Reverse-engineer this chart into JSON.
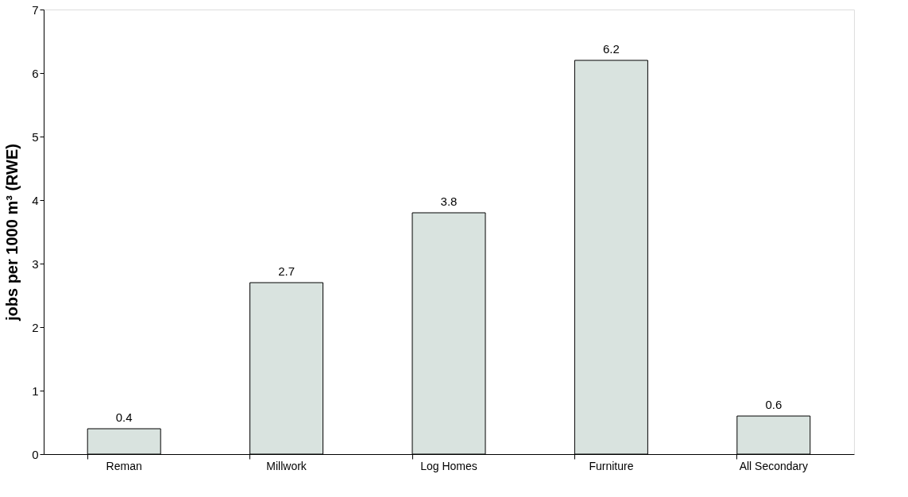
{
  "chart_data": {
    "type": "bar",
    "ylabel": "jobs per 1000 m³ (RWE)",
    "categories": [
      "Reman",
      "Millwork",
      "Log Homes",
      "Furniture",
      "All Secondary"
    ],
    "values": [
      0.4,
      2.7,
      3.8,
      6.2,
      0.6
    ],
    "color": "#d9e3df",
    "ylim": [
      0,
      7
    ],
    "yticks": [
      0,
      1,
      2,
      3,
      4,
      5,
      6,
      7
    ],
    "grid": false,
    "data_labels": true
  }
}
